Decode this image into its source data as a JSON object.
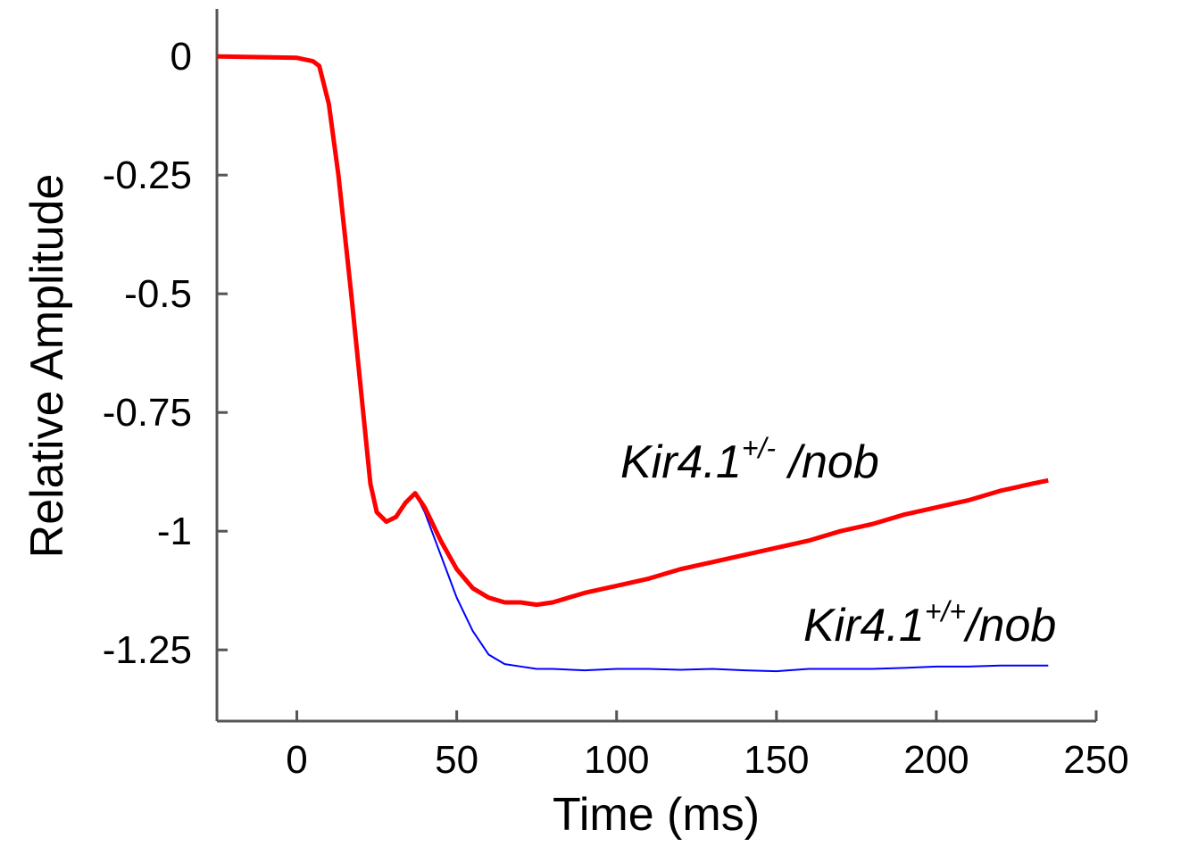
{
  "chart_data": {
    "type": "line",
    "x_label": "Time (ms)",
    "y_label": "Relative Amplitude",
    "x": [
      -25,
      0,
      5,
      7,
      10,
      13,
      17,
      20,
      23,
      25,
      28,
      31,
      34,
      37,
      40,
      45,
      50,
      55,
      60,
      65,
      70,
      75,
      80,
      90,
      100,
      110,
      120,
      130,
      140,
      150,
      160,
      170,
      180,
      190,
      200,
      210,
      220,
      230,
      235
    ],
    "series": [
      {
        "color": "#0000ff",
        "values": [
          0,
          -0.003,
          -0.01,
          -0.02,
          -0.1,
          -0.25,
          -0.5,
          -0.7,
          -0.9,
          -0.96,
          -0.98,
          -0.97,
          -0.94,
          -0.92,
          -0.96,
          -1.05,
          -1.14,
          -1.21,
          -1.26,
          -1.28,
          -1.285,
          -1.29,
          -1.29,
          -1.293,
          -1.29,
          -1.29,
          -1.292,
          -1.29,
          -1.293,
          -1.295,
          -1.29,
          -1.29,
          -1.29,
          -1.288,
          -1.285,
          -1.285,
          -1.283,
          -1.283,
          -1.283
        ]
      },
      {
        "color": "#ff0000",
        "values": [
          0,
          -0.003,
          -0.01,
          -0.02,
          -0.1,
          -0.25,
          -0.5,
          -0.7,
          -0.9,
          -0.96,
          -0.98,
          -0.97,
          -0.94,
          -0.92,
          -0.95,
          -1.02,
          -1.08,
          -1.12,
          -1.14,
          -1.15,
          -1.15,
          -1.155,
          -1.15,
          -1.13,
          -1.115,
          -1.1,
          -1.08,
          -1.065,
          -1.05,
          -1.035,
          -1.02,
          -1.0,
          -0.985,
          -0.965,
          -0.95,
          -0.935,
          -0.915,
          -0.9,
          -0.893
        ]
      }
    ],
    "annotations": [
      {
        "text": "Kir4.1",
        "sup": "+/-",
        "rest": " /nob",
        "color": "#ff0000"
      },
      {
        "text": "Kir4.1",
        "sup": "+/+",
        "rest": "/nob",
        "color": "#0000cc"
      }
    ],
    "xlim": [
      -25,
      250
    ],
    "xticks": [
      0,
      50,
      100,
      150,
      200,
      250
    ],
    "ylim": [
      -1.4,
      0.1
    ],
    "yticks": [
      0,
      -0.25,
      -0.5,
      -0.75,
      -1,
      -1.25
    ],
    "grid": false
  }
}
